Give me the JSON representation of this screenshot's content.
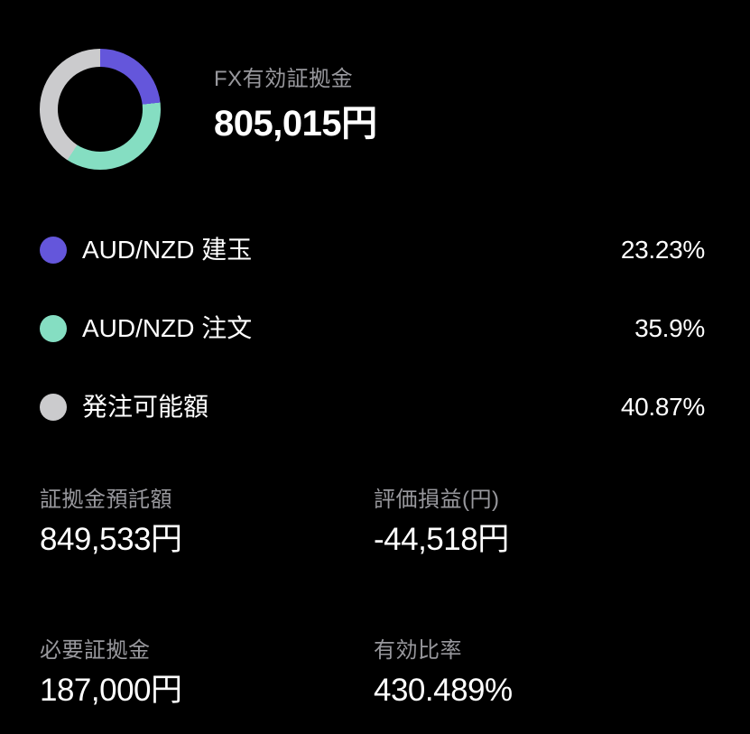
{
  "page": {
    "background_color": "#000000",
    "label_text_color": "#98989d",
    "value_text_color": "#ffffff"
  },
  "header": {
    "label": "FX有効証拠金",
    "value": "805,015円"
  },
  "chart_data": {
    "type": "pie",
    "subtype": "donut",
    "title": "FX有効証拠金",
    "center_total": "805,015円",
    "start_angle_deg": 0,
    "direction": "clockwise",
    "legend_position": "below",
    "segments": [
      {
        "label": "AUD/NZD 建玉",
        "value_pct": 23.23,
        "display": "23.23%",
        "color": "#6456db"
      },
      {
        "label": "AUD/NZD 注文",
        "value_pct": 35.9,
        "display": "35.9%",
        "color": "#85dec2"
      },
      {
        "label": "発注可能額",
        "value_pct": 40.87,
        "display": "40.87%",
        "color": "#cbcbcd"
      }
    ]
  },
  "stats": {
    "items": [
      {
        "label": "証拠金預託額",
        "value": "849,533円"
      },
      {
        "label": "評価損益(円)",
        "value": "-44,518円"
      },
      {
        "label": "必要証拠金",
        "value": "187,000円"
      },
      {
        "label": "有効比率",
        "value": "430.489%"
      }
    ]
  }
}
